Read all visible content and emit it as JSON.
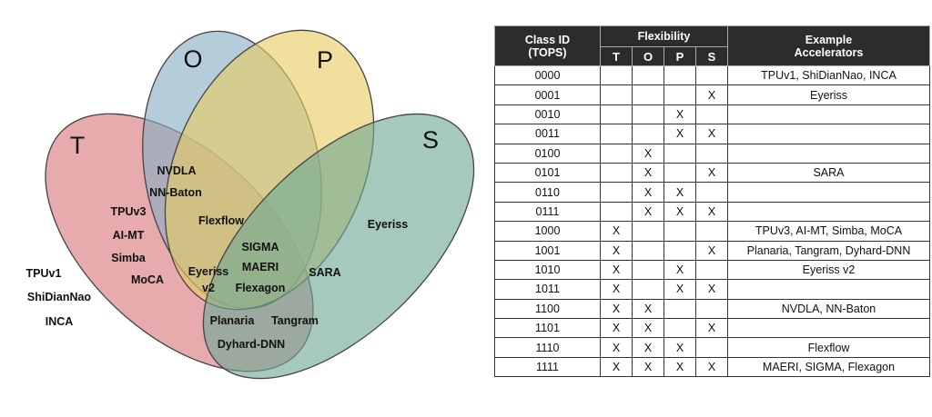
{
  "venn": {
    "set_labels": {
      "T": "T",
      "O": "O",
      "P": "P",
      "S": "S"
    },
    "colors": {
      "T": "#d9767b",
      "O": "#88aec3",
      "P": "#e9cb62",
      "S": "#6ea895"
    },
    "accelerators": [
      {
        "text": "TPUv1",
        "tops": "0000"
      },
      {
        "text": "ShiDianNao",
        "tops": "0000"
      },
      {
        "text": "INCA",
        "tops": "0000"
      },
      {
        "text": "NVDLA",
        "tops": "1100"
      },
      {
        "text": "NN-Baton",
        "tops": "1100"
      },
      {
        "text": "TPUv3",
        "tops": "1000"
      },
      {
        "text": "AI-MT",
        "tops": "1000"
      },
      {
        "text": "Simba",
        "tops": "1000"
      },
      {
        "text": "MoCA",
        "tops": "1000"
      },
      {
        "text": "Flexflow",
        "tops": "1110"
      },
      {
        "text": "SIGMA",
        "tops": "1111"
      },
      {
        "text": "MAERI",
        "tops": "1111"
      },
      {
        "text": "Flexagon",
        "tops": "1111"
      },
      {
        "text": "Eyeriss",
        "tops": "1010"
      },
      {
        "text": "v2",
        "tops": "1010"
      },
      {
        "text": "SARA",
        "tops": "0101"
      },
      {
        "text": "Eyeriss",
        "tops": "0001"
      },
      {
        "text": "Planaria",
        "tops": "1001"
      },
      {
        "text": "Tangram",
        "tops": "1001"
      },
      {
        "text": "Dyhard-DNN",
        "tops": "1001"
      }
    ]
  },
  "table": {
    "header": {
      "class_id": "Class ID",
      "class_id_sub": "(TOPS)",
      "flexibility": "Flexibility",
      "example": "Example",
      "example_sub": "Accelerators",
      "flags": [
        "T",
        "O",
        "P",
        "S"
      ]
    },
    "rows": [
      {
        "id": "0000",
        "t": "",
        "o": "",
        "p": "",
        "s": "",
        "acc": "TPUv1, ShiDianNao, INCA"
      },
      {
        "id": "0001",
        "t": "",
        "o": "",
        "p": "",
        "s": "X",
        "acc": "Eyeriss"
      },
      {
        "id": "0010",
        "t": "",
        "o": "",
        "p": "X",
        "s": "",
        "acc": ""
      },
      {
        "id": "0011",
        "t": "",
        "o": "",
        "p": "X",
        "s": "X",
        "acc": ""
      },
      {
        "id": "0100",
        "t": "",
        "o": "X",
        "p": "",
        "s": "",
        "acc": ""
      },
      {
        "id": "0101",
        "t": "",
        "o": "X",
        "p": "",
        "s": "X",
        "acc": "SARA"
      },
      {
        "id": "0110",
        "t": "",
        "o": "X",
        "p": "X",
        "s": "",
        "acc": ""
      },
      {
        "id": "0111",
        "t": "",
        "o": "X",
        "p": "X",
        "s": "X",
        "acc": ""
      },
      {
        "id": "1000",
        "t": "X",
        "o": "",
        "p": "",
        "s": "",
        "acc": "TPUv3, AI-MT, Simba, MoCA"
      },
      {
        "id": "1001",
        "t": "X",
        "o": "",
        "p": "",
        "s": "X",
        "acc": "Planaria, Tangram, Dyhard-DNN"
      },
      {
        "id": "1010",
        "t": "X",
        "o": "",
        "p": "X",
        "s": "",
        "acc": "Eyeriss v2"
      },
      {
        "id": "1011",
        "t": "X",
        "o": "",
        "p": "X",
        "s": "X",
        "acc": ""
      },
      {
        "id": "1100",
        "t": "X",
        "o": "X",
        "p": "",
        "s": "",
        "acc": "NVDLA, NN-Baton"
      },
      {
        "id": "1101",
        "t": "X",
        "o": "X",
        "p": "",
        "s": "X",
        "acc": ""
      },
      {
        "id": "1110",
        "t": "X",
        "o": "X",
        "p": "X",
        "s": "",
        "acc": "Flexflow"
      },
      {
        "id": "1111",
        "t": "X",
        "o": "X",
        "p": "X",
        "s": "X",
        "acc": "MAERI, SIGMA, Flexagon"
      }
    ]
  }
}
